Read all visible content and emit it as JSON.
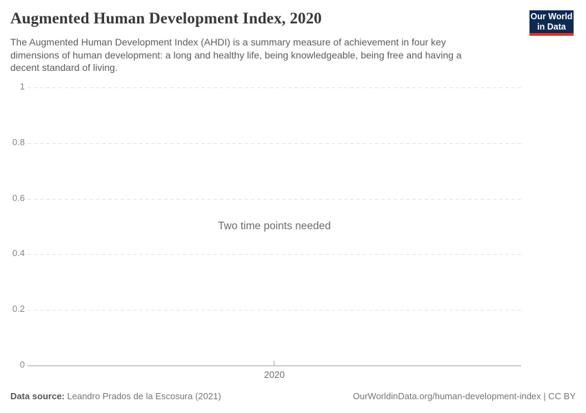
{
  "header": {
    "title": "Augmented Human Development Index, 2020",
    "subtitle": "The Augmented Human Development Index (AHDI) is a summary measure of achievement in four key dimensions of human development: a long and healthy life, being knowledgeable, being free and having a decent standard of living.",
    "logo": {
      "line1": "Our World",
      "line2": "in Data"
    }
  },
  "chart_data": {
    "type": "line",
    "title": "Augmented Human Development Index, 2020",
    "series": [],
    "empty_message": "Two time points needed",
    "xlabel": "",
    "ylabel": "",
    "ylim": [
      0,
      1
    ],
    "yticks": [
      0,
      0.2,
      0.4,
      0.6,
      0.8,
      1
    ],
    "ytick_labels": [
      "0",
      "0.2",
      "0.4",
      "0.6",
      "0.8",
      "1"
    ],
    "xticks": [
      2020
    ],
    "xtick_labels": [
      "2020"
    ],
    "grid": "horizontal dashed gridlines, solid zero axis",
    "legend_position": "none"
  },
  "footer": {
    "left": {
      "label": "Data source:",
      "value": "Leandro Prados de la Escosura (2021)"
    },
    "right": {
      "link": "OurWorldinData.org/human-development-index",
      "separator": " | ",
      "license": "CC BY"
    }
  },
  "colors": {
    "logo_background": "#0e2a52",
    "logo_stripe": "#dc352b",
    "title_text": "#383838",
    "subtitle_text": "#5b5b5b",
    "gridline": "#e3e3e3",
    "axis_line": "#a6a6a6",
    "tick_label": "#858585",
    "footer_text": "#757575"
  }
}
